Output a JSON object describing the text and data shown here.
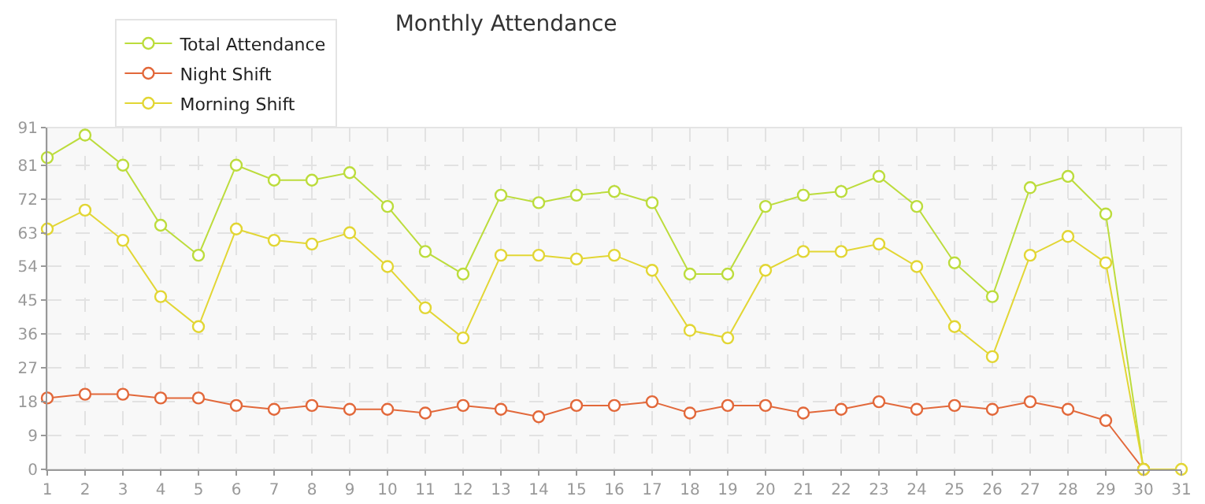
{
  "chart_data": {
    "type": "line",
    "title": "Monthly Attendance",
    "x": [
      1,
      2,
      3,
      4,
      5,
      6,
      7,
      8,
      9,
      10,
      11,
      12,
      13,
      14,
      15,
      16,
      17,
      18,
      19,
      20,
      21,
      22,
      23,
      24,
      25,
      26,
      27,
      28,
      29,
      30,
      31
    ],
    "series": [
      {
        "name": "Total Attendance",
        "color": "#bcdc3c",
        "values": [
          83,
          89,
          81,
          65,
          57,
          81,
          77,
          77,
          79,
          70,
          58,
          52,
          73,
          71,
          73,
          74,
          71,
          52,
          52,
          70,
          73,
          74,
          78,
          70,
          55,
          46,
          75,
          78,
          68,
          0,
          null
        ]
      },
      {
        "name": "Night Shift",
        "color": "#e2683a",
        "values": [
          19,
          20,
          20,
          19,
          19,
          17,
          16,
          17,
          16,
          16,
          15,
          17,
          16,
          14,
          17,
          17,
          18,
          15,
          17,
          17,
          15,
          16,
          18,
          16,
          17,
          16,
          18,
          16,
          13,
          0,
          null
        ]
      },
      {
        "name": "Morning Shift",
        "color": "#e2d634",
        "values": [
          64,
          69,
          61,
          46,
          38,
          64,
          61,
          60,
          63,
          54,
          43,
          35,
          57,
          57,
          56,
          57,
          53,
          37,
          35,
          53,
          58,
          58,
          60,
          54,
          38,
          30,
          57,
          62,
          55,
          0,
          0
        ]
      }
    ],
    "xlim": [
      1,
      31
    ],
    "xticks": [
      1,
      2,
      3,
      4,
      5,
      6,
      7,
      8,
      9,
      10,
      11,
      12,
      13,
      14,
      15,
      16,
      17,
      18,
      19,
      20,
      21,
      22,
      23,
      24,
      25,
      26,
      27,
      28,
      29,
      30,
      31
    ],
    "ylim": [
      0,
      91
    ],
    "yticks": [
      0,
      9,
      18,
      27,
      36,
      45,
      54,
      63,
      72,
      81,
      91
    ],
    "grid": true,
    "legend": "top left",
    "marker": "circle",
    "line_style": "solid"
  }
}
